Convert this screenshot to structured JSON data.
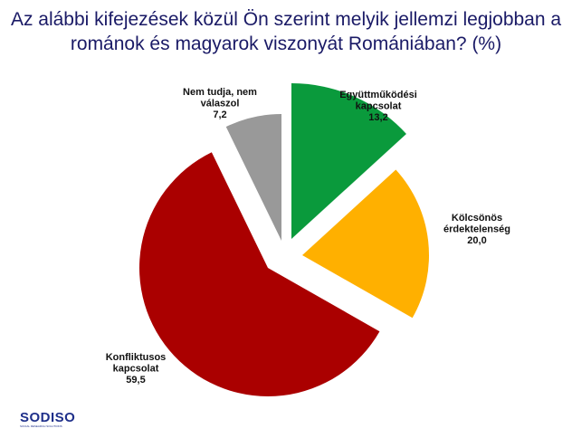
{
  "title": {
    "line1": "Az alábbi kifejezések közül Ön szerint melyik jellemzi legjobban a",
    "line2": "románok és magyarok viszonyát Romániában? (%)"
  },
  "logo": {
    "text": "SODISO",
    "subtitle": "SOCIAL RESEARCH SOLUTIONS"
  },
  "chart_data": {
    "type": "pie",
    "exploded": true,
    "start": "12 o'clock, clockwise",
    "slices": [
      {
        "label_lines": [
          "Együttműködési",
          "kapcsolat"
        ],
        "value": 13.2,
        "value_label": "13,2",
        "color": "#0a9a3c"
      },
      {
        "label_lines": [
          "Kölcsönös",
          "érdektelenség"
        ],
        "value": 20.0,
        "value_label": "20,0",
        "color": "#ffb000"
      },
      {
        "label_lines": [
          "Konfliktusos",
          "kapcsolat"
        ],
        "value": 59.5,
        "value_label": "59,5",
        "color": "#aa0000"
      },
      {
        "label_lines": [
          "Nem tudja, nem",
          "válaszol"
        ],
        "value": 7.2,
        "value_label": "7,2",
        "color": "#999999"
      }
    ]
  }
}
